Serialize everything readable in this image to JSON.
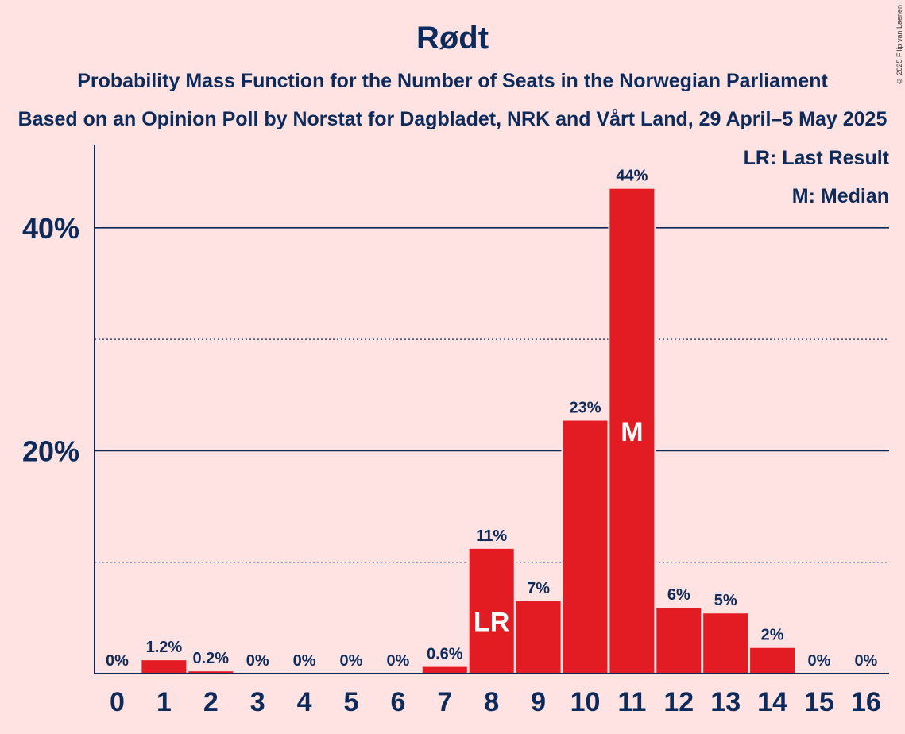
{
  "title": "Rødt",
  "subtitle": "Probability Mass Function for the Number of Seats in the Norwegian Parliament",
  "subtitle2": "Based on an Opinion Poll by Norstat for Dagbladet, NRK and Vårt Land, 29 April–5 May 2025",
  "copyright": "© 2025 Filip van Laenen",
  "legend": {
    "lr": "LR: Last Result",
    "m": "M: Median"
  },
  "colors": {
    "bar": "#e31b23",
    "axis": "#0c2a5a",
    "background": "#ffe2e2"
  },
  "chart_data": {
    "type": "bar",
    "categories": [
      "0",
      "1",
      "2",
      "3",
      "4",
      "5",
      "6",
      "7",
      "8",
      "9",
      "10",
      "11",
      "12",
      "13",
      "14",
      "15",
      "16"
    ],
    "values": [
      0,
      1.2,
      0.2,
      0,
      0,
      0,
      0,
      0.6,
      11.2,
      6.5,
      22.7,
      43.5,
      5.9,
      5.4,
      2.3,
      0,
      0
    ],
    "value_labels": [
      "0%",
      "1.2%",
      "0.2%",
      "0%",
      "0%",
      "0%",
      "0%",
      "0.6%",
      "11%",
      "7%",
      "23%",
      "44%",
      "6%",
      "5%",
      "2%",
      "0%",
      "0%"
    ],
    "ylim": [
      0,
      47
    ],
    "yticks": [
      20,
      40
    ],
    "ytick_labels": [
      "20%",
      "40%"
    ],
    "minor_gridlines": [
      10,
      30
    ],
    "grid": true,
    "markers": [
      {
        "category": "8",
        "label": "LR"
      },
      {
        "category": "11",
        "label": "M"
      }
    ],
    "legend_position": "top-right"
  }
}
